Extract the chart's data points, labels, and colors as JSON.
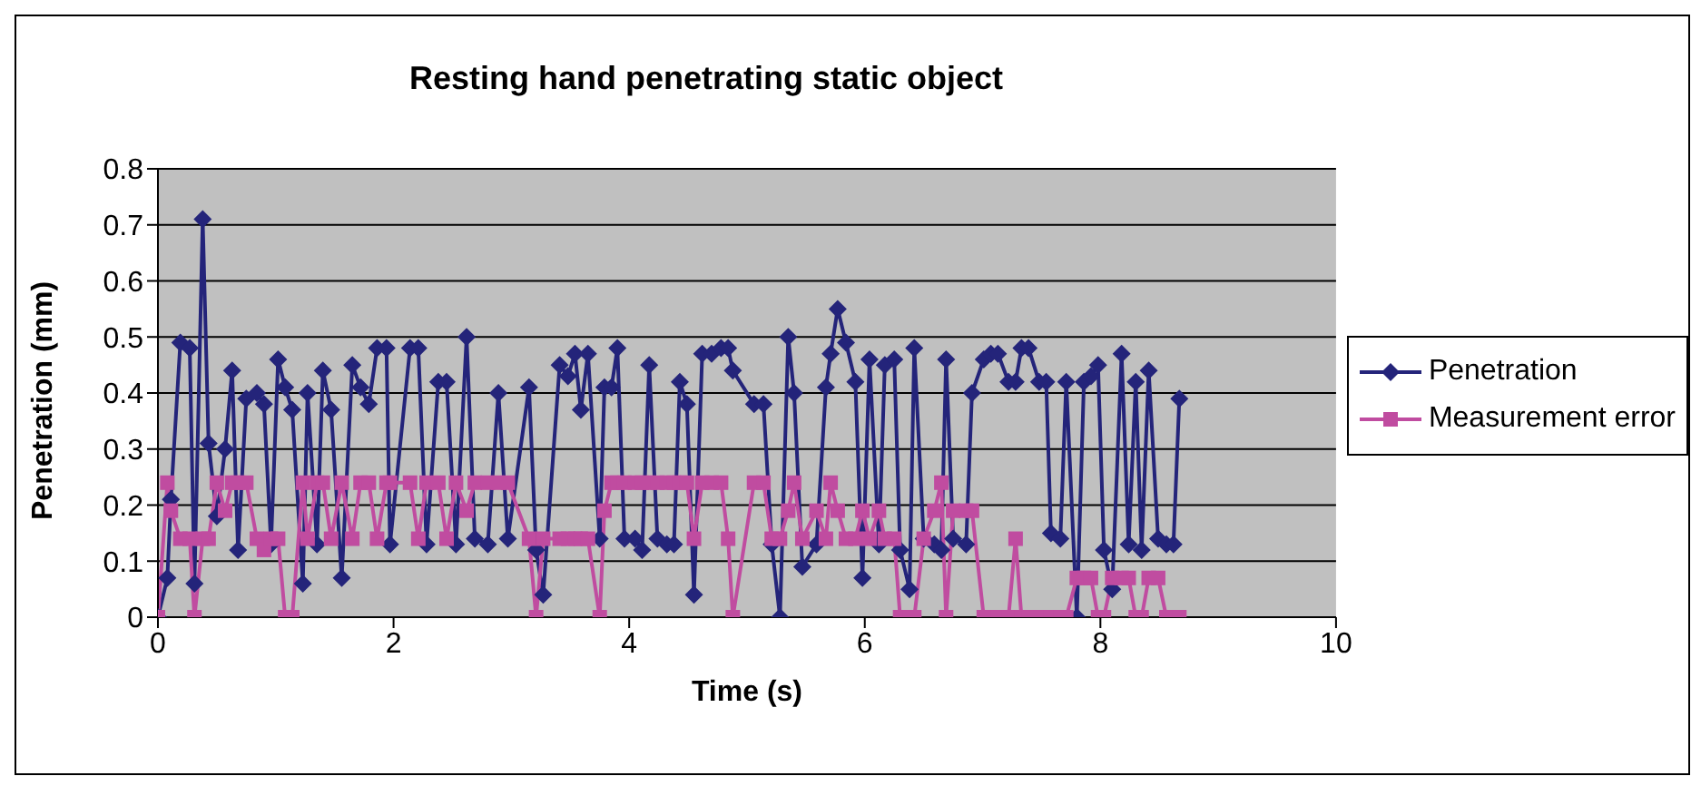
{
  "chart_data": {
    "type": "line",
    "title": "Resting hand penetrating static object",
    "xlabel": "Time (s)",
    "ylabel": "Penetration (mm)",
    "x": [
      0,
      0.08,
      0.11,
      0.19,
      0.27,
      0.31,
      0.38,
      0.43,
      0.5,
      0.57,
      0.63,
      0.68,
      0.75,
      0.84,
      0.9,
      0.96,
      1.02,
      1.08,
      1.14,
      1.23,
      1.27,
      1.35,
      1.4,
      1.47,
      1.56,
      1.65,
      1.72,
      1.79,
      1.86,
      1.94,
      1.97,
      2.14,
      2.21,
      2.28,
      2.38,
      2.45,
      2.53,
      2.62,
      2.69,
      2.8,
      2.89,
      2.97,
      3.15,
      3.21,
      3.27,
      3.41,
      3.48,
      3.54,
      3.59,
      3.65,
      3.75,
      3.79,
      3.85,
      3.9,
      3.96,
      4.05,
      4.11,
      4.17,
      4.24,
      4.32,
      4.38,
      4.43,
      4.49,
      4.55,
      4.62,
      4.7,
      4.78,
      4.84,
      4.88,
      5.06,
      5.14,
      5.21,
      5.28,
      5.35,
      5.4,
      5.47,
      5.59,
      5.67,
      5.71,
      5.77,
      5.84,
      5.92,
      5.98,
      6.04,
      6.12,
      6.17,
      6.25,
      6.3,
      6.38,
      6.42,
      6.5,
      6.59,
      6.65,
      6.69,
      6.75,
      6.86,
      6.91,
      7.01,
      7.07,
      7.13,
      7.22,
      7.28,
      7.33,
      7.39,
      7.48,
      7.54,
      7.58,
      7.66,
      7.71,
      7.8,
      7.86,
      7.92,
      7.98,
      8.03,
      8.1,
      8.18,
      8.24,
      8.3,
      8.35,
      8.41,
      8.49,
      8.56,
      8.62,
      8.67
    ],
    "series": [
      {
        "name": "Penetration",
        "color": "#24247a",
        "marker": "diamond",
        "values": [
          0,
          0.07,
          0.21,
          0.49,
          0.48,
          0.06,
          0.71,
          0.31,
          0.18,
          0.3,
          0.44,
          0.12,
          0.39,
          0.4,
          0.38,
          0.13,
          0.46,
          0.41,
          0.37,
          0.06,
          0.4,
          0.13,
          0.44,
          0.37,
          0.07,
          0.45,
          0.41,
          0.38,
          0.48,
          0.48,
          0.13,
          0.48,
          0.48,
          0.13,
          0.42,
          0.42,
          0.13,
          0.5,
          0.14,
          0.13,
          0.4,
          0.14,
          0.41,
          0.12,
          0.04,
          0.45,
          0.43,
          0.47,
          0.37,
          0.47,
          0.14,
          0.41,
          0.41,
          0.48,
          0.14,
          0.14,
          0.12,
          0.45,
          0.14,
          0.13,
          0.13,
          0.42,
          0.38,
          0.04,
          0.47,
          0.47,
          0.48,
          0.48,
          0.44,
          0.38,
          0.38,
          0.13,
          0,
          0.5,
          0.4,
          0.09,
          0.13,
          0.41,
          0.47,
          0.55,
          0.49,
          0.42,
          0.07,
          0.46,
          0.13,
          0.45,
          0.46,
          0.12,
          0.05,
          0.48,
          0.14,
          0.13,
          0.12,
          0.46,
          0.14,
          0.13,
          0.4,
          0.46,
          0.47,
          0.47,
          0.42,
          0.42,
          0.48,
          0.48,
          0.42,
          0.42,
          0.15,
          0.14,
          0.42,
          0,
          0.42,
          0.43,
          0.45,
          0.12,
          0.05,
          0.47,
          0.13,
          0.42,
          0.12,
          0.44,
          0.14,
          0.13,
          0.13,
          0.39
        ]
      },
      {
        "name": "Measurement error",
        "color": "#c04ca0",
        "marker": "square",
        "values": [
          0,
          0.24,
          0.19,
          0.14,
          0.14,
          0,
          0.14,
          0.14,
          0.24,
          0.19,
          0.24,
          0.24,
          0.24,
          0.14,
          0.12,
          0.14,
          0.14,
          0,
          0,
          0.24,
          0.14,
          0.24,
          0.24,
          0.14,
          0.24,
          0.14,
          0.24,
          0.24,
          0.14,
          0.24,
          0.24,
          0.24,
          0.14,
          0.24,
          0.24,
          0.14,
          0.24,
          0.19,
          0.24,
          0.24,
          0.24,
          0.24,
          0.14,
          0,
          0.14,
          0.14,
          0.14,
          0.14,
          0.14,
          0.14,
          0,
          0.19,
          0.24,
          0.24,
          0.24,
          0.24,
          0.24,
          0.24,
          0.24,
          0.24,
          0.24,
          0.24,
          0.24,
          0.14,
          0.24,
          0.24,
          0.24,
          0.14,
          0,
          0.24,
          0.24,
          0.14,
          0.14,
          0.19,
          0.24,
          0.14,
          0.19,
          0.14,
          0.24,
          0.19,
          0.14,
          0.14,
          0.19,
          0.14,
          0.19,
          0.14,
          0.14,
          0,
          0,
          0,
          0.14,
          0.19,
          0.24,
          0,
          0.19,
          0.19,
          0.19,
          0,
          0,
          0,
          0,
          0.14,
          0,
          0,
          0,
          0,
          0,
          0,
          0,
          0.07,
          0.07,
          0.07,
          0,
          0,
          0.07,
          0.07,
          0.07,
          0,
          0,
          0.07,
          0.07,
          0,
          0,
          0
        ]
      }
    ],
    "xlim": [
      0,
      10
    ],
    "xticks": [
      0,
      2,
      4,
      6,
      8,
      10
    ],
    "ylim": [
      0,
      0.8
    ],
    "yticks": [
      0,
      0.1,
      0.2,
      0.3,
      0.4,
      0.5,
      0.6,
      0.7,
      0.8
    ],
    "grid": "y",
    "legend": "right",
    "line_style": "solid"
  }
}
